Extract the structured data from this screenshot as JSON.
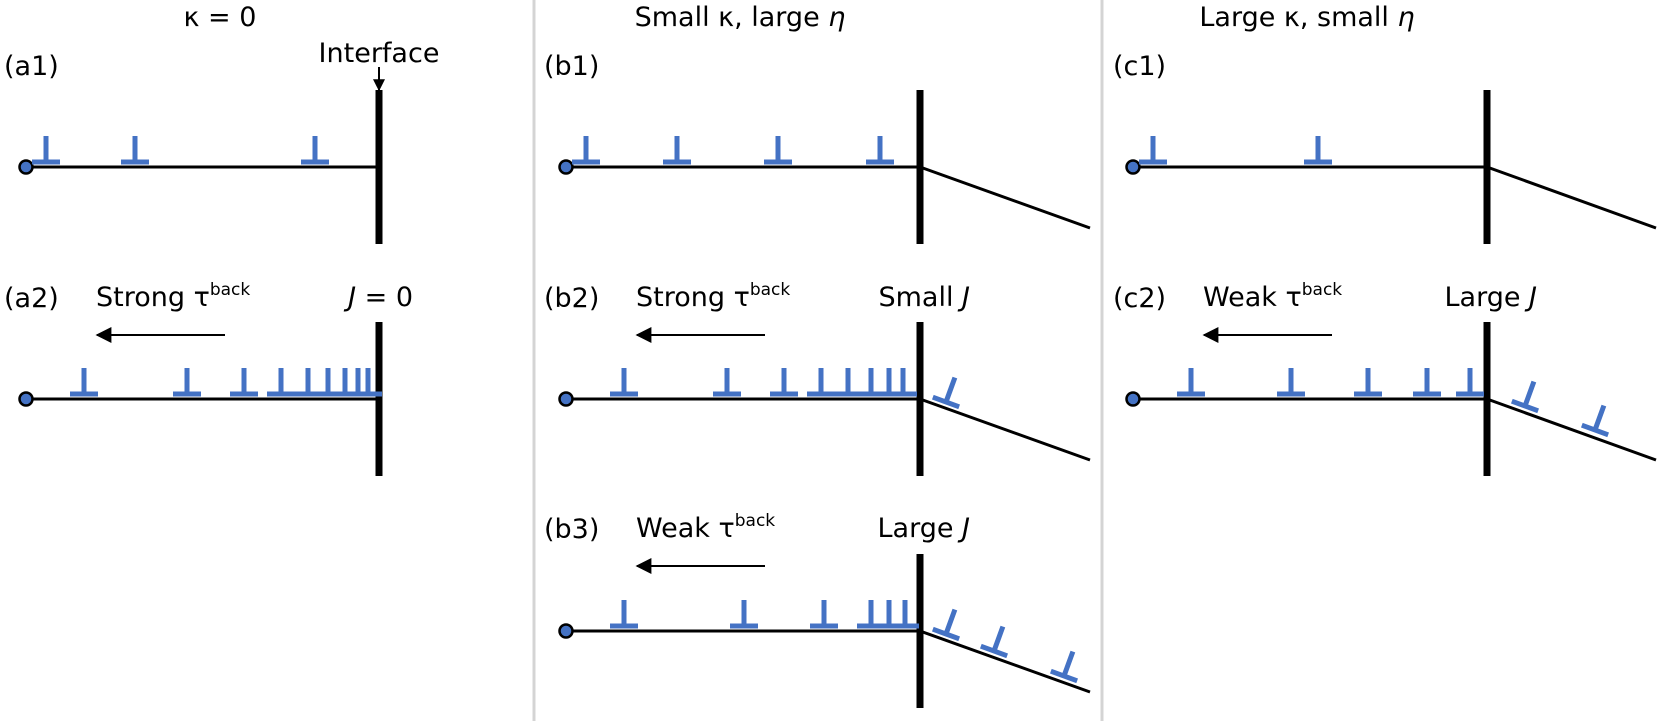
{
  "colors": {
    "dislocation": "#4472c4",
    "separator": "#d4d4d4",
    "line": "#000000"
  },
  "columns": [
    {
      "header": {
        "pre": "κ = 0",
        "italic": "",
        "post": ""
      }
    },
    {
      "header": {
        "pre": "Small κ, large ",
        "italic": "η",
        "post": ""
      }
    },
    {
      "header": {
        "pre": "Large κ, small ",
        "italic": "η",
        "post": ""
      }
    }
  ],
  "interface_label": "Interface",
  "panels": {
    "a1": {
      "label": "(a1)"
    },
    "a2": {
      "label": "(a2)",
      "stress": "Strong τ",
      "stress_sup": "back",
      "flux_pre": "",
      "flux_italic": "J",
      "flux_post": " = 0"
    },
    "b1": {
      "label": "(b1)"
    },
    "b2": {
      "label": "(b2)",
      "stress": "Strong τ",
      "stress_sup": "back",
      "flux_pre": "Small ",
      "flux_italic": "J",
      "flux_post": ""
    },
    "b3": {
      "label": "(b3)",
      "stress": "Weak τ",
      "stress_sup": "back",
      "flux_pre": "Large ",
      "flux_italic": "J",
      "flux_post": ""
    },
    "c1": {
      "label": "(c1)"
    },
    "c2": {
      "label": "(c2)",
      "stress": "Weak τ",
      "stress_sup": "back",
      "flux_pre": "Large ",
      "flux_italic": "J",
      "flux_post": ""
    }
  }
}
